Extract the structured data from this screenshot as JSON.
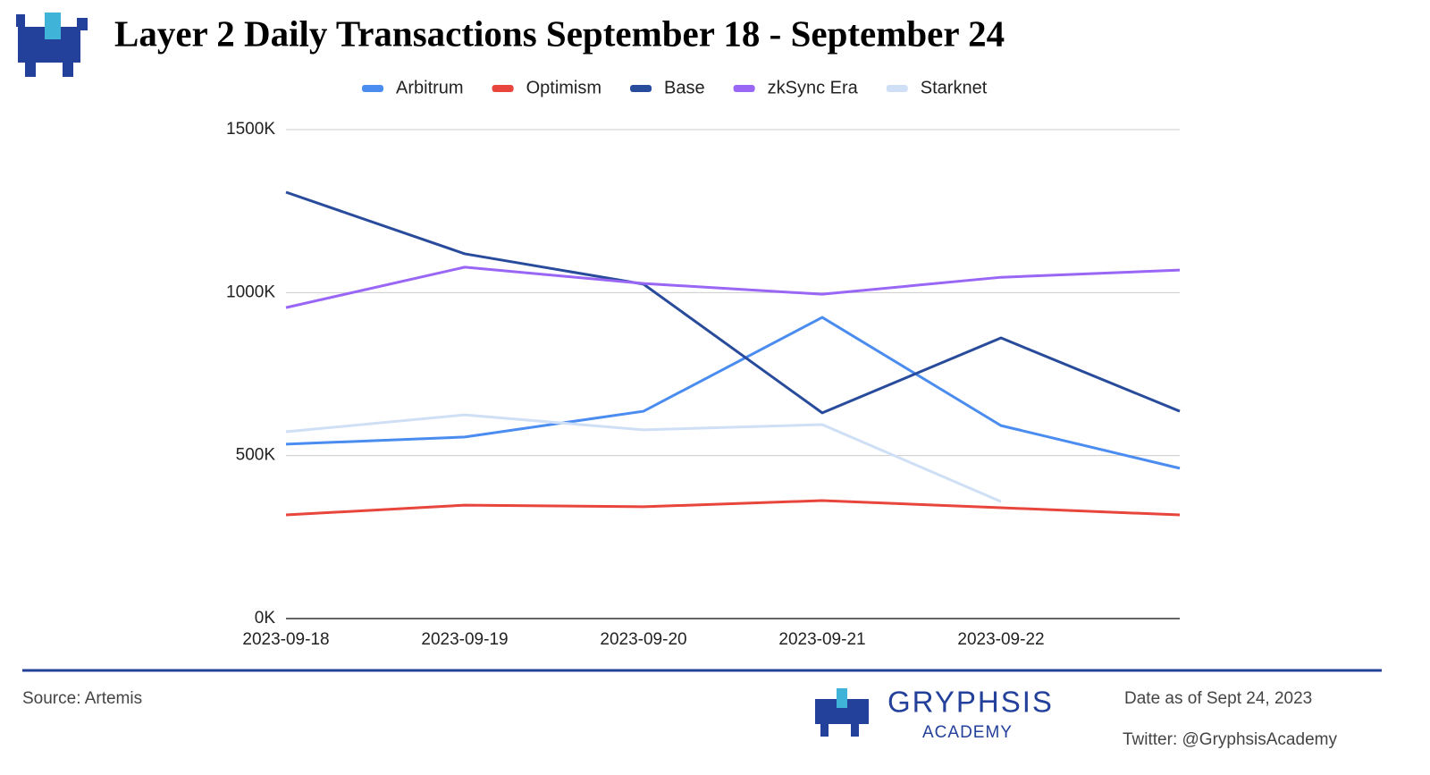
{
  "chart_data": {
    "type": "line",
    "title": "Layer 2 Daily Transactions September 18 - September 24",
    "categories": [
      "2023-09-18",
      "2023-09-19",
      "2023-09-20",
      "2023-09-21",
      "2023-09-22",
      null
    ],
    "series": [
      {
        "name": "Arbitrum",
        "color": "#4a8cf0",
        "values": [
          535000,
          557000,
          636000,
          924000,
          592000,
          461000
        ]
      },
      {
        "name": "Optimism",
        "color": "#e8453c",
        "values": [
          318000,
          348000,
          343000,
          362000,
          340000,
          318000
        ]
      },
      {
        "name": "Base",
        "color": "#284b9c",
        "values": [
          1308000,
          1119000,
          1026000,
          631000,
          861000,
          636000
        ]
      },
      {
        "name": "zkSync Era",
        "color": "#9966f5",
        "values": [
          954000,
          1078000,
          1028000,
          995000,
          1047000,
          1069000
        ]
      },
      {
        "name": "Starknet",
        "color": "#cfdff5",
        "values": [
          573000,
          625000,
          579000,
          595000,
          359000,
          null
        ]
      }
    ],
    "ylim": [
      0,
      1500000
    ],
    "yticks": [
      {
        "value": 0,
        "label": "0K"
      },
      {
        "value": 500000,
        "label": "500K"
      },
      {
        "value": 1000000,
        "label": "1000K"
      },
      {
        "value": 1500000,
        "label": "1500K"
      }
    ],
    "grid": true,
    "legend": "top"
  },
  "footer": {
    "source": "Source: Artemis",
    "brand": "GRYPHSIS",
    "brand_sub": "ACADEMY",
    "date": "Date as of  Sept 24, 2023",
    "twitter": "Twitter: @GryphsisAcademy"
  }
}
